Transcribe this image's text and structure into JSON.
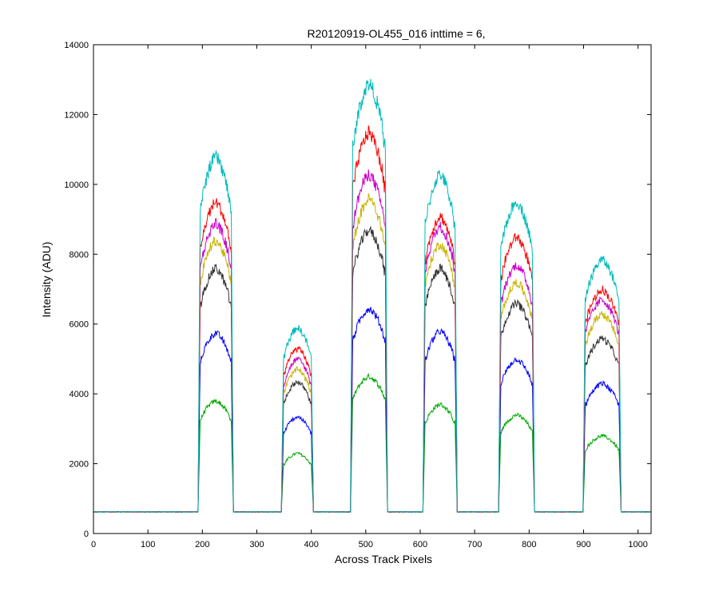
{
  "chart_data": {
    "type": "line",
    "title": "R20120919-OL455_016 inttime = 6,",
    "xlabel": "Across Track Pixels",
    "ylabel": "Intensity (ADU)",
    "xlim": [
      0,
      1024
    ],
    "ylim": [
      0,
      14000
    ],
    "xticks": [
      0,
      100,
      200,
      300,
      400,
      500,
      600,
      700,
      800,
      900,
      1000
    ],
    "yticks": [
      0,
      2000,
      4000,
      6000,
      8000,
      10000,
      12000,
      14000
    ],
    "grid": false,
    "baseline": 620,
    "bands": [
      {
        "x_start": 196,
        "x_end": 253
      },
      {
        "x_start": 349,
        "x_end": 400
      },
      {
        "x_start": 476,
        "x_end": 536
      },
      {
        "x_start": 609,
        "x_end": 664
      },
      {
        "x_start": 748,
        "x_end": 806
      },
      {
        "x_start": 903,
        "x_end": 965
      }
    ],
    "series": [
      {
        "color": "#00aa00",
        "peaks": [
          3800,
          2300,
          4500,
          3700,
          3400,
          2800
        ]
      },
      {
        "color": "#0000ff",
        "peaks": [
          5750,
          3350,
          6450,
          5800,
          5000,
          4300
        ]
      },
      {
        "color": "#333333",
        "peaks": [
          7600,
          4350,
          8700,
          7600,
          6600,
          5600
        ]
      },
      {
        "color": "#c8b400",
        "peaks": [
          8400,
          4700,
          9600,
          8300,
          7200,
          6300
        ]
      },
      {
        "color": "#cc00cc",
        "peaks": [
          8900,
          5000,
          10300,
          8800,
          7700,
          6700
        ]
      },
      {
        "color": "#ff0000",
        "peaks": [
          9500,
          5300,
          11500,
          9100,
          8500,
          7000
        ]
      },
      {
        "color": "#00bbbb",
        "peaks": [
          10800,
          5900,
          12900,
          10300,
          9500,
          7850
        ]
      }
    ]
  }
}
